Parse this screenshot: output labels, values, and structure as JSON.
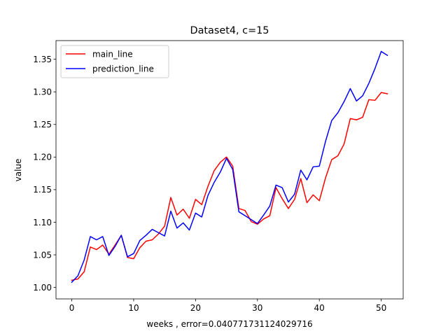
{
  "chart_data": {
    "type": "line",
    "title": "Dataset4, c=15",
    "xlabel": "weeks , error=0.040771731124029716",
    "ylabel": "value",
    "xlim": [
      -2.55,
      53.55
    ],
    "ylim": [
      0.9824,
      1.3786
    ],
    "xticks": [
      0,
      10,
      20,
      30,
      40,
      50
    ],
    "xtick_labels": [
      "0",
      "10",
      "20",
      "30",
      "40",
      "50"
    ],
    "yticks": [
      1.0,
      1.05,
      1.1,
      1.15,
      1.2,
      1.25,
      1.3,
      1.35
    ],
    "ytick_labels": [
      "1.00",
      "1.05",
      "1.10",
      "1.15",
      "1.20",
      "1.25",
      "1.30",
      "1.35"
    ],
    "grid": false,
    "legend_position": "top-left",
    "x": [
      0,
      1,
      2,
      3,
      4,
      5,
      6,
      7,
      8,
      9,
      10,
      11,
      12,
      13,
      14,
      15,
      16,
      17,
      18,
      19,
      20,
      21,
      22,
      23,
      24,
      25,
      26,
      27,
      28,
      29,
      30,
      31,
      32,
      33,
      34,
      35,
      36,
      37,
      38,
      39,
      40,
      41,
      42,
      43,
      44,
      45,
      46,
      47,
      48,
      49,
      50,
      51
    ],
    "series": [
      {
        "name": "main_line",
        "color": "#ff0000",
        "values": [
          1.011,
          1.013,
          1.024,
          1.062,
          1.058,
          1.065,
          1.051,
          1.065,
          1.08,
          1.046,
          1.044,
          1.061,
          1.071,
          1.073,
          1.082,
          1.094,
          1.138,
          1.111,
          1.12,
          1.106,
          1.135,
          1.127,
          1.155,
          1.179,
          1.192,
          1.2,
          1.186,
          1.121,
          1.118,
          1.101,
          1.097,
          1.105,
          1.11,
          1.153,
          1.136,
          1.121,
          1.135,
          1.167,
          1.13,
          1.142,
          1.133,
          1.168,
          1.196,
          1.202,
          1.22,
          1.259,
          1.257,
          1.261,
          1.288,
          1.287,
          1.299,
          1.297
        ]
      },
      {
        "name": "prediction_line",
        "color": "#0000ff",
        "values": [
          1.008,
          1.018,
          1.042,
          1.078,
          1.073,
          1.078,
          1.049,
          1.063,
          1.08,
          1.047,
          1.052,
          1.072,
          1.08,
          1.089,
          1.084,
          1.079,
          1.117,
          1.091,
          1.099,
          1.088,
          1.114,
          1.108,
          1.141,
          1.161,
          1.177,
          1.198,
          1.181,
          1.116,
          1.11,
          1.104,
          1.098,
          1.111,
          1.125,
          1.157,
          1.153,
          1.131,
          1.143,
          1.18,
          1.165,
          1.185,
          1.186,
          1.224,
          1.256,
          1.268,
          1.285,
          1.305,
          1.286,
          1.294,
          1.313,
          1.336,
          1.362,
          1.356
        ]
      }
    ]
  }
}
